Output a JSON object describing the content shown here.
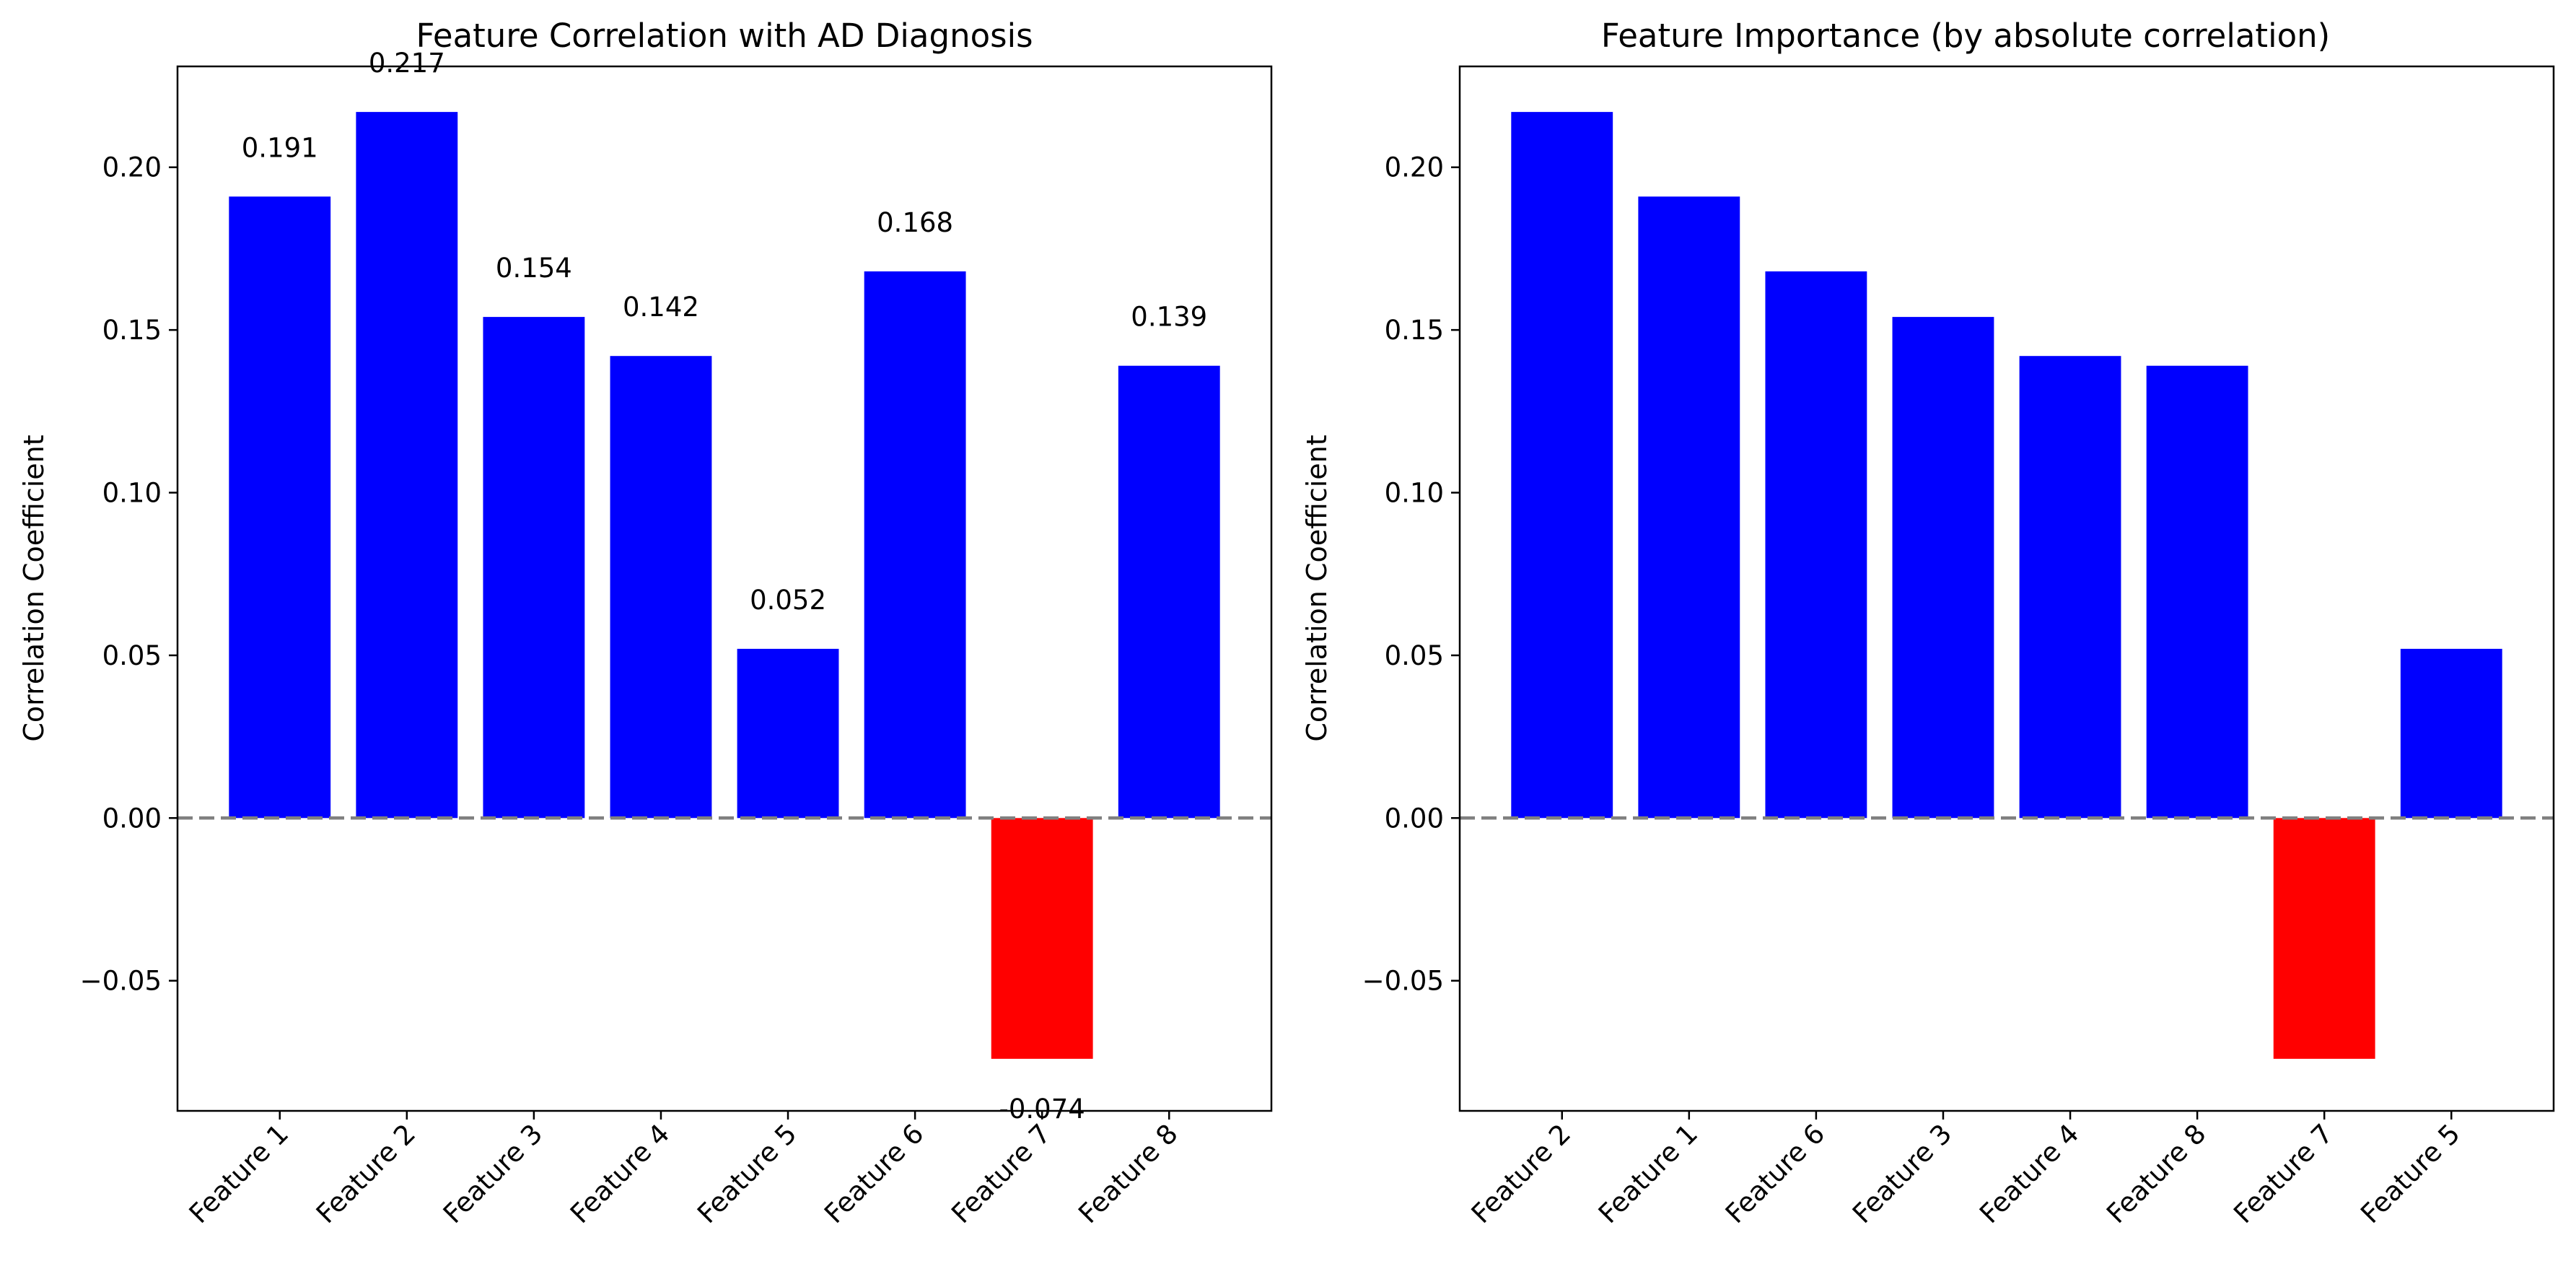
{
  "colors": {
    "positive_bar": "#0000ff",
    "negative_bar": "#ff0000",
    "zero_line": "#808080",
    "background": "#ffffff",
    "text": "#000000"
  },
  "chart_data": [
    {
      "type": "bar",
      "title": "Feature Correlation with AD Diagnosis",
      "xlabel": "",
      "ylabel": "Correlation Coefficient",
      "categories": [
        "Feature 1",
        "Feature 2",
        "Feature 3",
        "Feature 4",
        "Feature 5",
        "Feature 6",
        "Feature 7",
        "Feature 8"
      ],
      "values": [
        0.191,
        0.217,
        0.154,
        0.142,
        0.052,
        0.168,
        -0.074,
        0.139
      ],
      "data_labels": [
        "0.191",
        "0.217",
        "0.154",
        "0.142",
        "0.052",
        "0.168",
        "-0.074",
        "0.139"
      ],
      "ylim": [
        -0.09,
        0.231
      ],
      "yticks": [
        -0.05,
        0.0,
        0.05,
        0.1,
        0.15,
        0.2
      ],
      "ytick_labels": [
        "−0.05",
        "0.00",
        "0.05",
        "0.10",
        "0.15",
        "0.20"
      ],
      "zero_line": "dashed",
      "grid": false,
      "legend": "none"
    },
    {
      "type": "bar",
      "title": "Feature Importance (by absolute correlation)",
      "xlabel": "",
      "ylabel": "Correlation Coefficient",
      "categories": [
        "Feature 2",
        "Feature 1",
        "Feature 6",
        "Feature 3",
        "Feature 4",
        "Feature 8",
        "Feature 7",
        "Feature 5"
      ],
      "values": [
        0.217,
        0.191,
        0.168,
        0.154,
        0.142,
        0.139,
        -0.074,
        0.052
      ],
      "ylim": [
        -0.09,
        0.231
      ],
      "yticks": [
        -0.05,
        0.0,
        0.05,
        0.1,
        0.15,
        0.2
      ],
      "ytick_labels": [
        "−0.05",
        "0.00",
        "0.05",
        "0.10",
        "0.15",
        "0.20"
      ],
      "zero_line": "dashed",
      "grid": false,
      "legend": "none"
    }
  ]
}
